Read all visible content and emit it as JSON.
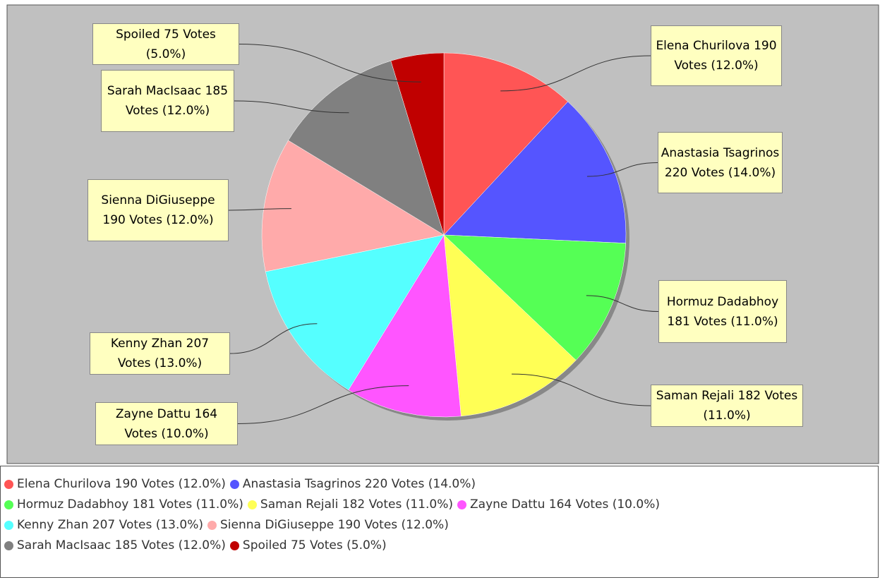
{
  "chart_data": {
    "type": "pie",
    "categories": [
      "Elena Churilova 190 Votes (12.0%)",
      "Anastasia Tsagrinos 220 Votes (14.0%)",
      "Hormuz Dadabhoy 181 Votes (11.0%)",
      "Saman Rejali 182 Votes (11.0%)",
      "Zayne Dattu 164 Votes (10.0%)",
      "Kenny Zhan 207 Votes (13.0%)",
      "Sienna DiGiuseppe 190 Votes (12.0%)",
      "Sarah MacIsaac 185 Votes (12.0%)",
      "Spoiled 75 Votes (5.0%)"
    ],
    "values": [
      190,
      220,
      181,
      182,
      164,
      207,
      190,
      185,
      75
    ],
    "colors": [
      "#ff5555",
      "#5555ff",
      "#55ff55",
      "#ffff55",
      "#ff55ff",
      "#55ffff",
      "#ffaaaa",
      "#808080",
      "#c00000"
    ],
    "legend": "bottom"
  }
}
